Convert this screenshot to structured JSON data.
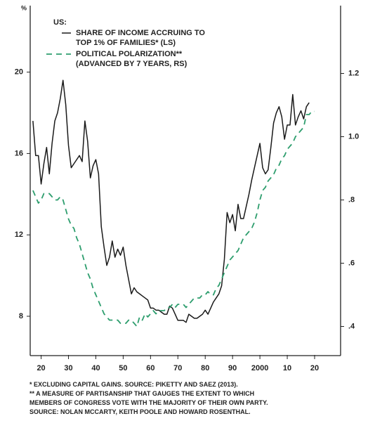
{
  "chart_data": {
    "type": "line",
    "y_unit_label": "%",
    "legend_heading": "US:",
    "x": [
      1917,
      1918,
      1919,
      1920,
      1921,
      1922,
      1923,
      1924,
      1925,
      1926,
      1927,
      1928,
      1929,
      1930,
      1931,
      1932,
      1933,
      1934,
      1935,
      1936,
      1937,
      1938,
      1939,
      1940,
      1941,
      1942,
      1943,
      1944,
      1945,
      1946,
      1947,
      1948,
      1949,
      1950,
      1951,
      1952,
      1953,
      1954,
      1955,
      1956,
      1957,
      1958,
      1959,
      1960,
      1961,
      1962,
      1963,
      1964,
      1965,
      1966,
      1967,
      1968,
      1969,
      1970,
      1971,
      1972,
      1973,
      1974,
      1975,
      1976,
      1977,
      1978,
      1979,
      1980,
      1981,
      1982,
      1983,
      1984,
      1985,
      1986,
      1987,
      1988,
      1989,
      1990,
      1991,
      1992,
      1993,
      1994,
      1995,
      1996,
      1997,
      1998,
      1999,
      2000,
      2001,
      2002,
      2003,
      2004,
      2005,
      2006,
      2007,
      2008,
      2009,
      2010,
      2011,
      2012,
      2013,
      2014,
      2015,
      2016,
      2017,
      2018,
      2019,
      2020
    ],
    "series": [
      {
        "name": "SHARE OF INCOME ACCRUING TO\nTOP 1% OF FAMILIES* (LS)",
        "color": "#1a1a1a",
        "dashed": false,
        "axis": "y",
        "values": [
          17.6,
          15.9,
          15.9,
          14.5,
          15.5,
          16.3,
          15.0,
          16.5,
          17.6,
          18.0,
          18.7,
          19.6,
          18.4,
          16.4,
          15.3,
          15.5,
          15.7,
          15.9,
          15.6,
          17.6,
          16.6,
          14.8,
          15.4,
          15.7,
          15.0,
          12.4,
          11.4,
          10.5,
          10.9,
          11.7,
          10.9,
          11.3,
          11.0,
          11.4,
          10.5,
          9.8,
          9.1,
          9.4,
          9.2,
          9.1,
          9.0,
          8.9,
          8.8,
          8.4,
          8.4,
          8.3,
          8.3,
          8.2,
          8.1,
          8.1,
          8.5,
          8.4,
          8.1,
          7.8,
          7.8,
          7.8,
          7.7,
          8.1,
          8.0,
          7.9,
          7.9,
          8.0,
          8.1,
          8.3,
          8.1,
          8.4,
          8.7,
          8.9,
          9.1,
          9.5,
          10.8,
          13.1,
          12.6,
          13.0,
          12.2,
          13.5,
          12.8,
          12.8,
          13.4,
          14.0,
          14.7,
          15.3,
          15.9,
          16.5,
          15.3,
          15.0,
          15.2,
          16.3,
          17.5,
          18.0,
          18.3,
          17.8,
          16.7,
          17.4,
          17.4,
          18.9,
          17.4,
          17.8,
          18.1,
          17.7,
          18.3,
          18.5,
          null,
          null
        ]
      },
      {
        "name": "POLITICAL POLARIZATION**\n(ADVANCED BY 7 YEARS, RS)",
        "color": "#2e9e6e",
        "dashed": true,
        "axis": "y2",
        "values": [
          0.83,
          0.81,
          0.79,
          0.8,
          0.82,
          0.82,
          0.82,
          0.81,
          0.8,
          0.8,
          0.81,
          0.8,
          0.77,
          0.74,
          0.72,
          0.71,
          0.68,
          0.66,
          0.63,
          0.6,
          0.57,
          0.55,
          0.52,
          0.5,
          0.48,
          0.46,
          0.44,
          0.43,
          0.42,
          0.42,
          0.42,
          0.42,
          0.41,
          0.41,
          0.41,
          0.42,
          0.42,
          0.41,
          0.4,
          0.43,
          0.42,
          0.44,
          0.43,
          0.44,
          0.45,
          0.44,
          0.45,
          0.45,
          0.45,
          0.46,
          0.46,
          0.47,
          0.46,
          0.47,
          0.47,
          0.47,
          0.46,
          0.47,
          0.48,
          0.49,
          0.49,
          0.49,
          0.5,
          0.5,
          0.51,
          0.5,
          0.5,
          0.52,
          0.53,
          0.55,
          0.57,
          0.59,
          0.61,
          0.62,
          0.63,
          0.64,
          0.66,
          0.68,
          0.69,
          0.7,
          0.71,
          0.73,
          0.76,
          0.8,
          0.83,
          0.84,
          0.86,
          0.87,
          0.88,
          0.9,
          0.91,
          0.93,
          0.94,
          0.96,
          0.97,
          0.98,
          1.0,
          1.01,
          1.02,
          1.03,
          1.07,
          1.07,
          1.08,
          1.08
        ]
      }
    ],
    "xlim": [
      1916,
      2029.5
    ],
    "xticks": [
      {
        "value": 1920,
        "label": "20"
      },
      {
        "value": 1930,
        "label": "30"
      },
      {
        "value": 1940,
        "label": "40"
      },
      {
        "value": 1950,
        "label": "50"
      },
      {
        "value": 1960,
        "label": "60"
      },
      {
        "value": 1970,
        "label": "70"
      },
      {
        "value": 1980,
        "label": "80"
      },
      {
        "value": 1990,
        "label": "90"
      },
      2000,
      {
        "value": 2010,
        "label": "10"
      },
      {
        "value": 2020,
        "label": "20"
      }
    ],
    "ylim": [
      6.1,
      23.2
    ],
    "yticks": [
      8,
      12,
      16,
      20
    ],
    "y2lim": [
      0.31,
      1.41
    ],
    "y2ticks": [
      {
        "value": 0.4,
        "label": ".4"
      },
      {
        "value": 0.6,
        "label": ".6"
      },
      {
        "value": 0.8,
        "label": ".8"
      },
      {
        "value": 1.0,
        "label": "1.0"
      },
      1.2
    ],
    "grid": false,
    "notes": [
      "* EXCLUDING CAPITAL GAINS. SOURCE: PIKETTY AND SAEZ (2013).",
      "** A MEASURE OF PARTISANSHIP THAT GAUGES THE EXTENT TO WHICH",
      "MEMBERS OF CONGRESS VOTE WITH THE MAJORITY OF THEIR OWN PARTY.",
      "SOURCE: NOLAN MCCARTY, KEITH POOLE AND HOWARD ROSENTHAL."
    ]
  }
}
